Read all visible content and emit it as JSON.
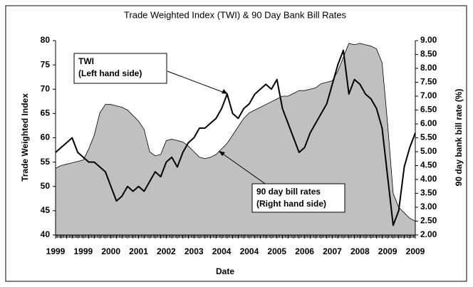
{
  "chart_data": {
    "type": "line",
    "title": "Trade Weighted Index (TWI) & 90 Day Bank Bill Rates",
    "x_label": "Date",
    "y_label": "Trade Weighted Index",
    "y2_label": "90 day bank bill rate (%)",
    "categories": [
      "1999",
      null,
      null,
      null,
      null,
      "1999",
      null,
      null,
      null,
      null,
      "2000",
      null,
      null,
      null,
      null,
      "2001",
      null,
      null,
      null,
      null,
      "2002",
      null,
      null,
      null,
      null,
      "2003",
      null,
      null,
      null,
      null,
      "2004",
      null,
      null,
      null,
      null,
      "2004",
      null,
      null,
      null,
      null,
      "2005",
      null,
      null,
      null,
      null,
      "2006",
      null,
      null,
      null,
      null,
      "2007",
      null,
      null,
      null,
      null,
      "2008",
      null,
      null,
      null,
      null,
      "2009",
      null,
      null,
      null,
      null,
      "2009"
    ],
    "ylim": [
      40,
      80
    ],
    "yticks": [
      40,
      45,
      50,
      55,
      60,
      65,
      70,
      75,
      80
    ],
    "y2lim": [
      2,
      9
    ],
    "y2ticks": [
      {
        "value": 2,
        "label": "2.00"
      },
      {
        "value": 2.5,
        "label": "2.50"
      },
      {
        "value": 3,
        "label": "3.00"
      },
      {
        "value": 3.5,
        "label": "3.50"
      },
      {
        "value": 4,
        "label": "4.00"
      },
      {
        "value": 4.5,
        "label": "4.50"
      },
      {
        "value": 5,
        "label": "5.00"
      },
      {
        "value": 5.5,
        "label": "5.50"
      },
      {
        "value": 6,
        "label": "6.00"
      },
      {
        "value": 6.5,
        "label": "6.50"
      },
      {
        "value": 7,
        "label": "7.00"
      },
      {
        "value": 7.5,
        "label": "7.50"
      },
      {
        "value": 8,
        "label": "8.00"
      },
      {
        "value": 8.5,
        "label": "8.50"
      },
      {
        "value": 9,
        "label": "9.00"
      }
    ],
    "series": [
      {
        "name": "90 day bill rates",
        "kind": "area",
        "axis": "y2",
        "color": "#c0c0c0",
        "values": [
          4.4,
          4.5,
          4.55,
          4.6,
          4.65,
          4.7,
          5.1,
          5.6,
          6.4,
          6.7,
          6.7,
          6.65,
          6.6,
          6.5,
          6.3,
          6.1,
          5.8,
          5.0,
          4.85,
          4.9,
          5.4,
          5.45,
          5.4,
          5.35,
          5.2,
          5.0,
          4.8,
          4.75,
          4.8,
          4.9,
          5.1,
          5.3,
          5.6,
          5.9,
          6.2,
          6.4,
          6.5,
          6.6,
          6.7,
          6.8,
          6.9,
          7.0,
          7.0,
          7.1,
          7.2,
          7.2,
          7.25,
          7.3,
          7.45,
          7.5,
          7.55,
          7.9,
          8.4,
          8.9,
          8.85,
          8.9,
          8.85,
          8.8,
          8.7,
          8.2,
          6.0,
          3.5,
          3.0,
          2.8,
          2.6,
          2.5
        ]
      },
      {
        "name": "TWI",
        "kind": "line",
        "axis": "y",
        "color": "#000000",
        "values": [
          57,
          58,
          59,
          60,
          57,
          56,
          55,
          55,
          54,
          53,
          50,
          47,
          48,
          50,
          49,
          50,
          49,
          51,
          53,
          52,
          55,
          56,
          54,
          57,
          59,
          60,
          62,
          62,
          63,
          64,
          66,
          69,
          65,
          64,
          66,
          67,
          69,
          70,
          71,
          70,
          72,
          66,
          63,
          60,
          57,
          58,
          61,
          63,
          65,
          67,
          71,
          75,
          78,
          69,
          72,
          71,
          69,
          68,
          66,
          62,
          52,
          42,
          45,
          54,
          58,
          61
        ]
      }
    ],
    "annotations": [
      "(Left hand side)",
      "(Right hand side)"
    ]
  }
}
